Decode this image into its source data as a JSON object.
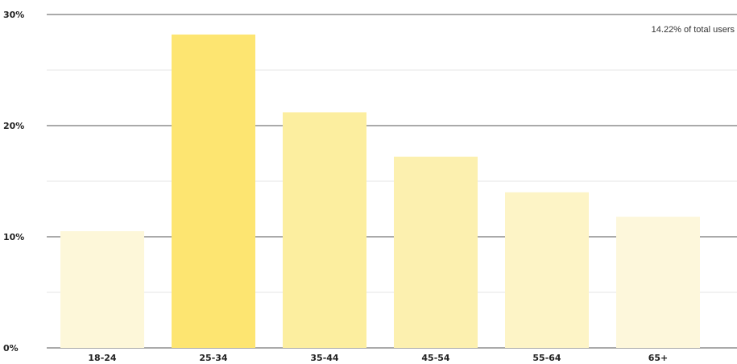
{
  "chart_data": {
    "type": "bar",
    "title": "",
    "xlabel": "",
    "ylabel": "",
    "categories": [
      "18-24",
      "25-34",
      "35-44",
      "45-54",
      "55-64",
      "65+"
    ],
    "values": [
      10.5,
      28.2,
      21.2,
      17.2,
      14.0,
      11.8
    ],
    "bar_colors": [
      "#fdf7d9",
      "#fde571",
      "#fcee9f",
      "#fcf0af",
      "#fdf4c6",
      "#fdf7db"
    ],
    "ylim": [
      0,
      30
    ],
    "y_ticks": [
      0,
      10,
      20,
      30
    ],
    "y_tick_labels": [
      "0%",
      "10%",
      "20%",
      "30%"
    ],
    "grid": true,
    "legend": "none",
    "annotation": "14.22% of total users"
  }
}
